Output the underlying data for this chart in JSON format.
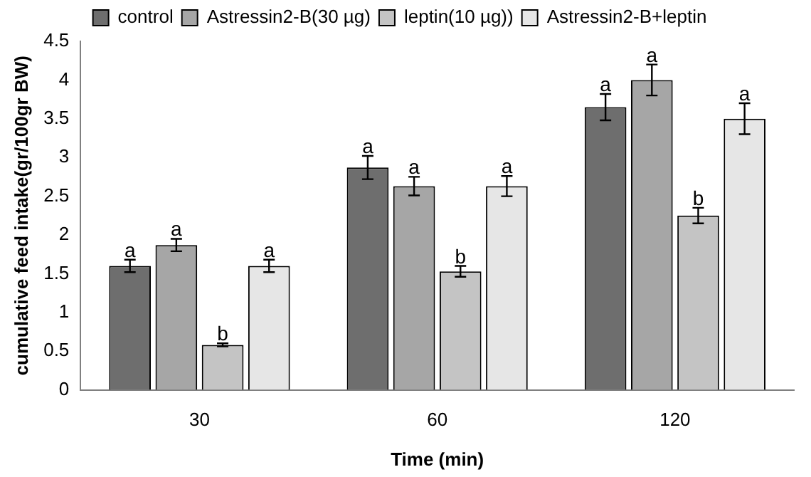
{
  "chart_data": {
    "type": "bar",
    "xlabel": "Time (min)",
    "ylabel": "cumulative feed intake(gr/100gr BW)",
    "categories": [
      "30",
      "60",
      "120"
    ],
    "series": [
      {
        "name": "control",
        "color": "#6e6e6e",
        "values": [
          1.6,
          2.87,
          3.65
        ],
        "errors": [
          0.08,
          0.15,
          0.17
        ]
      },
      {
        "name": "Astressin2-B(30 µg)",
        "color": "#a6a6a6",
        "values": [
          1.87,
          2.63,
          4.0
        ],
        "errors": [
          0.08,
          0.12,
          0.2
        ]
      },
      {
        "name": "leptin(10 µg))",
        "color": "#c4c4c4",
        "values": [
          0.58,
          1.53,
          2.25
        ],
        "errors": [
          0.02,
          0.07,
          0.1
        ]
      },
      {
        "name": "Astressin2-B+leptin",
        "color": "#e6e6e6",
        "values": [
          1.6,
          2.63,
          3.5
        ],
        "errors": [
          0.08,
          0.13,
          0.2
        ]
      }
    ],
    "ylim": [
      0,
      4.5
    ],
    "yticks": [
      0,
      0.5,
      1,
      1.5,
      2,
      2.5,
      3,
      3.5,
      4,
      4.5
    ],
    "grid": false,
    "legend": "top",
    "annotations": [
      "a",
      "a",
      "b",
      "a",
      "a",
      "a",
      "b",
      "a",
      "a",
      "a",
      "b",
      "a"
    ]
  }
}
